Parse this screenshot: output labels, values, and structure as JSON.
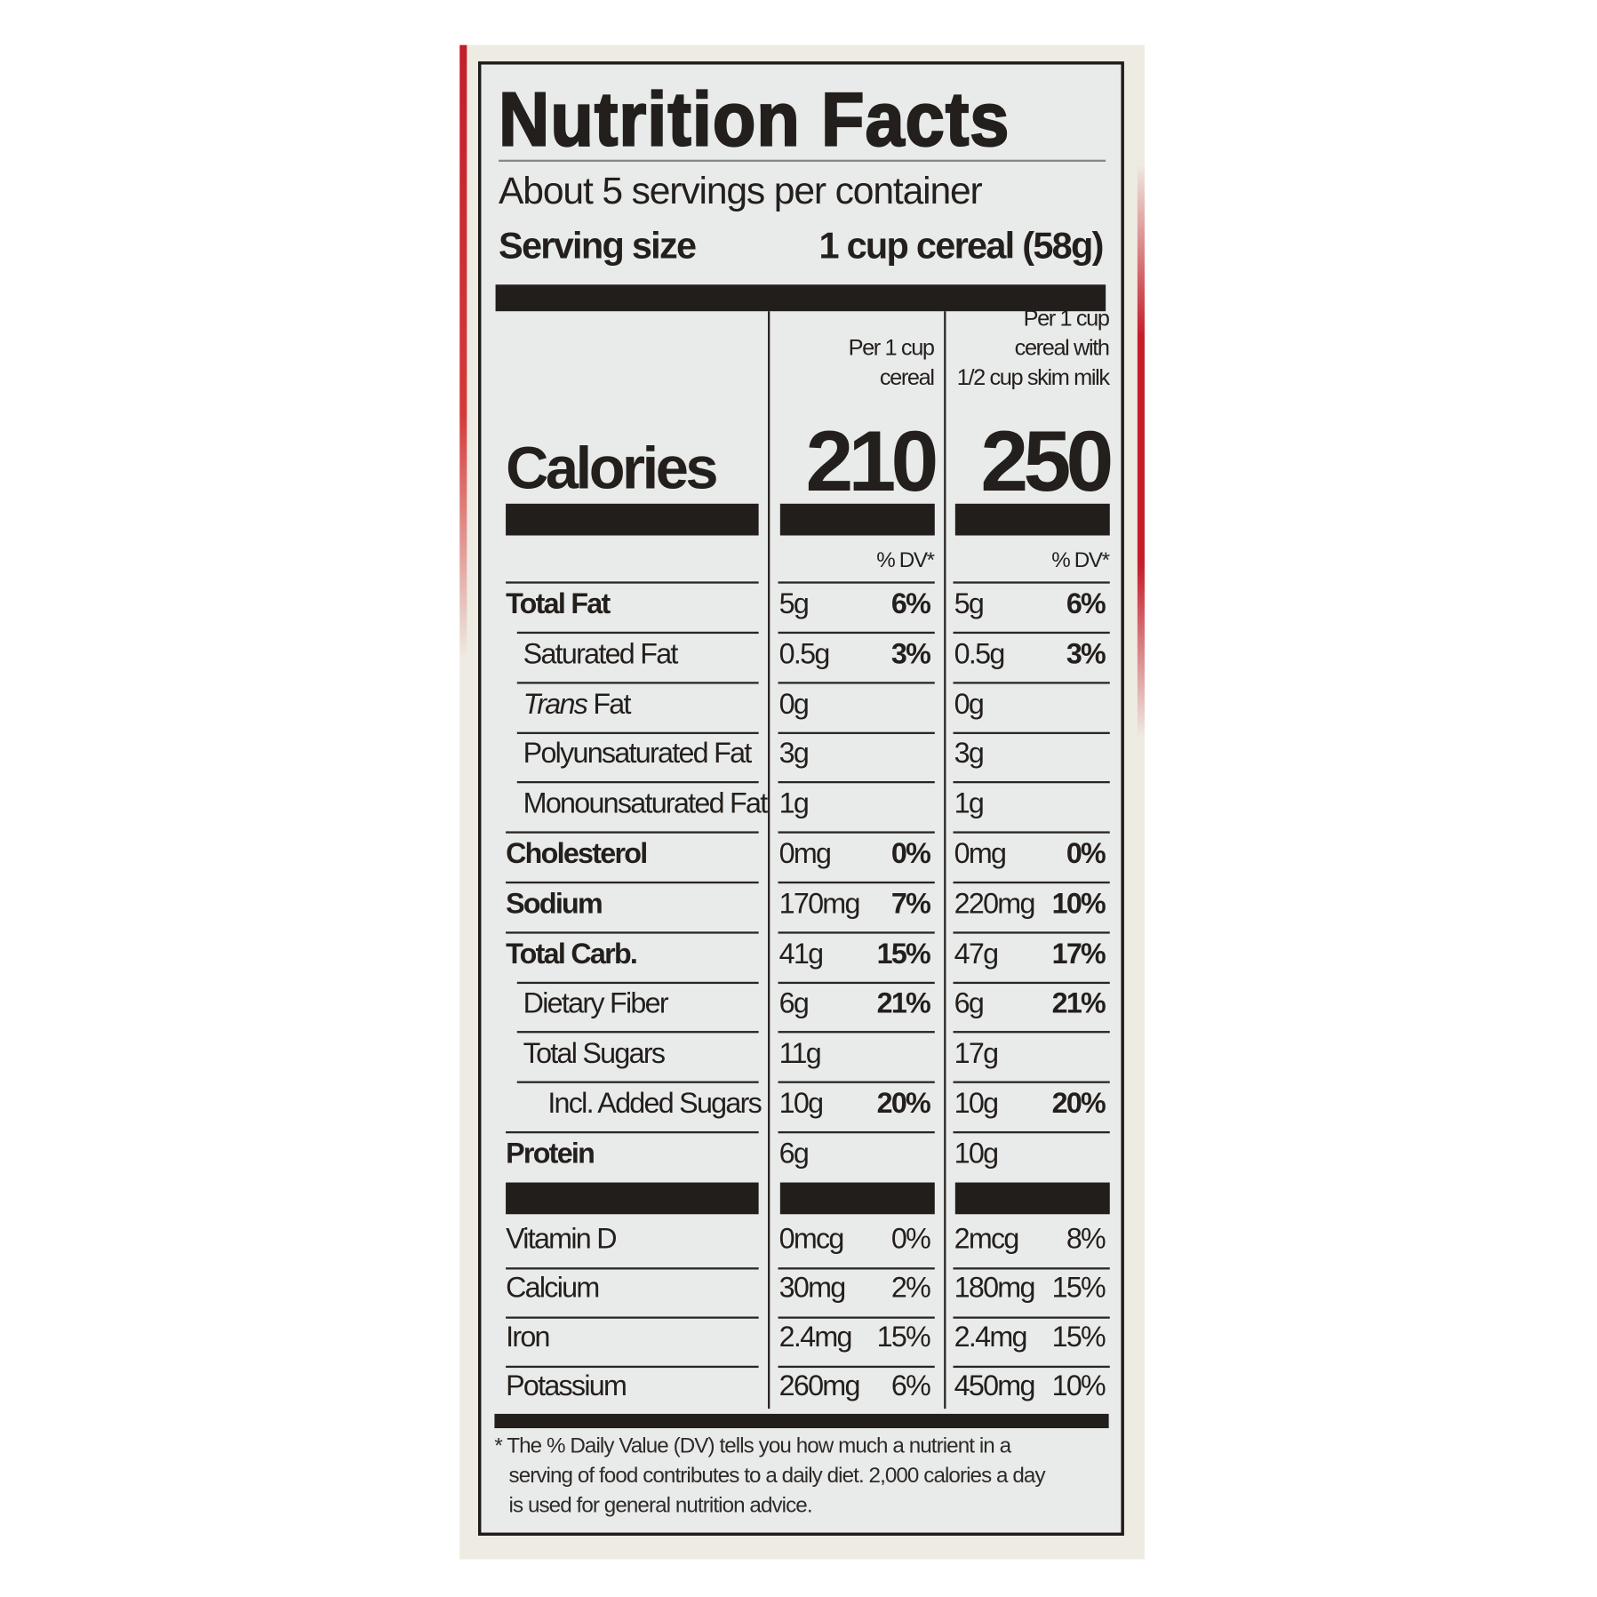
{
  "title": "Nutrition Facts",
  "servings_per_container": "About 5 servings per container",
  "serving_size_label": "Serving size",
  "serving_size_value": "1 cup cereal (58g)",
  "columns": [
    {
      "header_lines": [
        "Per 1 cup",
        "cereal"
      ],
      "calories": "210",
      "dv_label": "% DV*"
    },
    {
      "header_lines": [
        "Per 1 cup",
        "cereal with",
        "1/2 cup skim milk"
      ],
      "calories": "250",
      "dv_label": "% DV*"
    }
  ],
  "calories_label": "Calories",
  "nutrients": [
    {
      "name": "Total Fat",
      "bold": true,
      "indent": 0,
      "v1": "5g",
      "dv1": "6%",
      "v2": "5g",
      "dv2": "6%"
    },
    {
      "name": "Saturated Fat",
      "bold": false,
      "indent": 1,
      "v1": "0.5g",
      "dv1": "3%",
      "v2": "0.5g",
      "dv2": "3%"
    },
    {
      "name_italic": "Trans",
      "name": " Fat",
      "bold": false,
      "indent": 1,
      "v1": "0g",
      "dv1": "",
      "v2": "0g",
      "dv2": ""
    },
    {
      "name": "Polyunsaturated Fat",
      "bold": false,
      "indent": 1,
      "v1": "3g",
      "dv1": "",
      "v2": "3g",
      "dv2": ""
    },
    {
      "name": "Monounsaturated Fat",
      "bold": false,
      "indent": 1,
      "v1": "1g",
      "dv1": "",
      "v2": "1g",
      "dv2": ""
    },
    {
      "name": "Cholesterol",
      "bold": true,
      "indent": 0,
      "v1": "0mg",
      "dv1": "0%",
      "v2": "0mg",
      "dv2": "0%"
    },
    {
      "name": "Sodium",
      "bold": true,
      "indent": 0,
      "v1": "170mg",
      "dv1": "7%",
      "v2": "220mg",
      "dv2": "10%"
    },
    {
      "name": "Total Carb.",
      "bold": true,
      "indent": 0,
      "v1": "41g",
      "dv1": "15%",
      "v2": "47g",
      "dv2": "17%"
    },
    {
      "name": "Dietary Fiber",
      "bold": false,
      "indent": 1,
      "v1": "6g",
      "dv1": "21%",
      "v2": "6g",
      "dv2": "21%"
    },
    {
      "name": "Total Sugars",
      "bold": false,
      "indent": 1,
      "v1": "11g",
      "dv1": "",
      "v2": "17g",
      "dv2": ""
    },
    {
      "name": "Incl. Added Sugars",
      "bold": false,
      "indent": 2,
      "v1": "10g",
      "dv1": "20%",
      "v2": "10g",
      "dv2": "20%"
    },
    {
      "name": "Protein",
      "bold": true,
      "indent": 0,
      "v1": "6g",
      "dv1": "",
      "v2": "10g",
      "dv2": ""
    }
  ],
  "vitamins": [
    {
      "name": "Vitamin D",
      "v1": "0mcg",
      "dv1": "0%",
      "v2": "2mcg",
      "dv2": "8%"
    },
    {
      "name": "Calcium",
      "v1": "30mg",
      "dv1": "2%",
      "v2": "180mg",
      "dv2": "15%"
    },
    {
      "name": "Iron",
      "v1": "2.4mg",
      "dv1": "15%",
      "v2": "2.4mg",
      "dv2": "15%"
    },
    {
      "name": "Potassium",
      "v1": "260mg",
      "dv1": "6%",
      "v2": "450mg",
      "dv2": "10%"
    }
  ],
  "footnote_lines": [
    "* The % Daily Value (DV) tells you how much a nutrient in a",
    "serving of food contributes to a daily diet. 2,000 calories a day",
    "is used for general nutrition advice."
  ]
}
